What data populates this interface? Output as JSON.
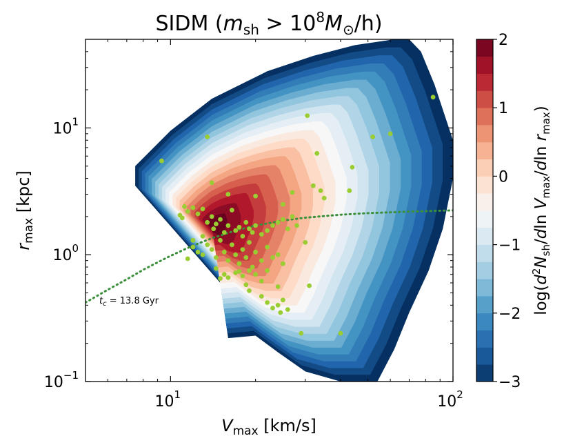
{
  "chart_data": {
    "type": "contour+scatter",
    "title_parts": {
      "prefix": "SIDM (",
      "m": "m",
      "m_sub": "sh",
      "gt": " > 10",
      "sup": "8",
      "M": "M",
      "M_sub": "⊙",
      "tail": "/h)"
    },
    "title_text": "SIDM (m_sh > 10^8 M_⊙/h)",
    "xlabel_parts": {
      "V": "V",
      "sub": "max",
      "unit": " [km/s]"
    },
    "xlabel_text": "V_max [km/s]",
    "ylabel_parts": {
      "r": "r",
      "sub": "max",
      "unit": " [kpc]"
    },
    "ylabel_text": "r_max [kpc]",
    "x_scale": "log",
    "y_scale": "log",
    "xlim": [
      5,
      100
    ],
    "ylim": [
      0.1,
      50
    ],
    "x_ticks": [
      {
        "value": 10,
        "base": "10",
        "exp": "1"
      },
      {
        "value": 100,
        "base": "10",
        "exp": "2"
      }
    ],
    "y_ticks": [
      {
        "value": 0.1,
        "base": "10",
        "exp": "−1"
      },
      {
        "value": 1,
        "base": "10",
        "exp": "0"
      },
      {
        "value": 10,
        "base": "10",
        "exp": "1"
      }
    ],
    "colorbar": {
      "label_text": "log(d²N_sh/dln V_max/dln r_max)",
      "label_parts": {
        "a": "log(",
        "d1": "d",
        "s2": "2",
        "N": "N",
        "sh": "sh",
        "b": "/",
        "d2": "d",
        "ln1": "ln ",
        "V": "V",
        "max1": "max",
        "c": "/",
        "d3": "d",
        "ln2": "ln ",
        "r": "r",
        "max2": "max",
        "end": ")"
      },
      "range": [
        -3,
        2
      ],
      "levels": 21,
      "ticks": [
        {
          "value": 2,
          "label": "2"
        },
        {
          "value": 1,
          "label": "1"
        },
        {
          "value": 0,
          "label": "0"
        },
        {
          "value": -1,
          "label": "−1"
        },
        {
          "value": -2,
          "label": "−2"
        },
        {
          "value": -3,
          "label": "−3"
        }
      ],
      "colormap": "RdBu_r"
    },
    "density_peak": {
      "vmax": 14,
      "rmax": 1.7,
      "log_density": 2
    },
    "curve": {
      "label": "t_c = 13.8 Gyr",
      "label_parts": {
        "t": "t",
        "c": "c",
        "rest": " = 13.8 Gyr"
      },
      "style": "dotted",
      "color": "#3a8f3a",
      "points": [
        [
          5,
          0.42
        ],
        [
          6,
          0.53
        ],
        [
          7,
          0.64
        ],
        [
          8,
          0.76
        ],
        [
          9,
          0.87
        ],
        [
          10,
          0.98
        ],
        [
          12,
          1.18
        ],
        [
          14,
          1.35
        ],
        [
          17,
          1.55
        ],
        [
          20,
          1.7
        ],
        [
          25,
          1.86
        ],
        [
          30,
          1.96
        ],
        [
          40,
          2.07
        ],
        [
          50,
          2.13
        ],
        [
          70,
          2.19
        ],
        [
          100,
          2.24
        ]
      ]
    },
    "scatter": {
      "color": "#9acd32",
      "points": [
        [
          9.3,
          5.5
        ],
        [
          13.5,
          8.5
        ],
        [
          30.5,
          12.5
        ],
        [
          52,
          8.5
        ],
        [
          60,
          9.0
        ],
        [
          85,
          17.5
        ],
        [
          33,
          6.3
        ],
        [
          14,
          3.7
        ],
        [
          44,
          4.9
        ],
        [
          43,
          3.2
        ],
        [
          27,
          3.1
        ],
        [
          32,
          3.5
        ],
        [
          34,
          3.2
        ],
        [
          35,
          2.8
        ],
        [
          20,
          2.9
        ],
        [
          16,
          3.0
        ],
        [
          25,
          2.5
        ],
        [
          10.8,
          2.05
        ],
        [
          11,
          1.95
        ],
        [
          11.2,
          2.4
        ],
        [
          11.5,
          2.2
        ],
        [
          12,
          2.35
        ],
        [
          12.5,
          2.1
        ],
        [
          13,
          2.3
        ],
        [
          13.5,
          1.8
        ],
        [
          14,
          2.0
        ],
        [
          14.2,
          1.6
        ],
        [
          14.5,
          1.75
        ],
        [
          15,
          1.9
        ],
        [
          15.5,
          1.5
        ],
        [
          16,
          1.7
        ],
        [
          16.5,
          2.25
        ],
        [
          17,
          1.55
        ],
        [
          17.5,
          1.65
        ],
        [
          18,
          1.4
        ],
        [
          18.5,
          1.8
        ],
        [
          19,
          1.6
        ],
        [
          19.5,
          1.5
        ],
        [
          20,
          1.7
        ],
        [
          21,
          1.45
        ],
        [
          22,
          1.55
        ],
        [
          23,
          1.7
        ],
        [
          24,
          1.8
        ],
        [
          25,
          1.9
        ],
        [
          26,
          1.6
        ],
        [
          27,
          2.0
        ],
        [
          28,
          1.7
        ],
        [
          11.5,
          0.93
        ],
        [
          12,
          1.15
        ],
        [
          12.5,
          1.05
        ],
        [
          13,
          1.0
        ],
        [
          13.5,
          1.2
        ],
        [
          14,
          1.1
        ],
        [
          14.5,
          0.95
        ],
        [
          15,
          1.3
        ],
        [
          15.5,
          1.05
        ],
        [
          16,
          0.9
        ],
        [
          16.5,
          1.2
        ],
        [
          17,
          1.0
        ],
        [
          17.5,
          0.85
        ],
        [
          18,
          1.1
        ],
        [
          18.5,
          0.95
        ],
        [
          19,
          1.25
        ],
        [
          19.5,
          0.8
        ],
        [
          20,
          1.05
        ],
        [
          21,
          0.9
        ],
        [
          22,
          1.15
        ],
        [
          23,
          0.95
        ],
        [
          24,
          1.0
        ],
        [
          25,
          0.85
        ],
        [
          14.5,
          0.78
        ],
        [
          15,
          0.65
        ],
        [
          15.5,
          0.7
        ],
        [
          16,
          0.66
        ],
        [
          17,
          0.72
        ],
        [
          18,
          0.68
        ],
        [
          19,
          0.75
        ],
        [
          20,
          0.7
        ],
        [
          21,
          0.62
        ],
        [
          22,
          0.75
        ],
        [
          17.5,
          0.74
        ],
        [
          18.5,
          0.58
        ],
        [
          21,
          0.47
        ],
        [
          22,
          0.42
        ],
        [
          23,
          0.38
        ],
        [
          24,
          0.4
        ],
        [
          24.5,
          0.35
        ],
        [
          25,
          0.44
        ],
        [
          26,
          0.37
        ],
        [
          31,
          0.57
        ],
        [
          30,
          1.25
        ],
        [
          24,
          0.56
        ],
        [
          29,
          0.24
        ],
        [
          40,
          0.24
        ],
        [
          12,
          1.3
        ],
        [
          13,
          1.4
        ],
        [
          19,
          0.52
        ]
      ]
    }
  }
}
